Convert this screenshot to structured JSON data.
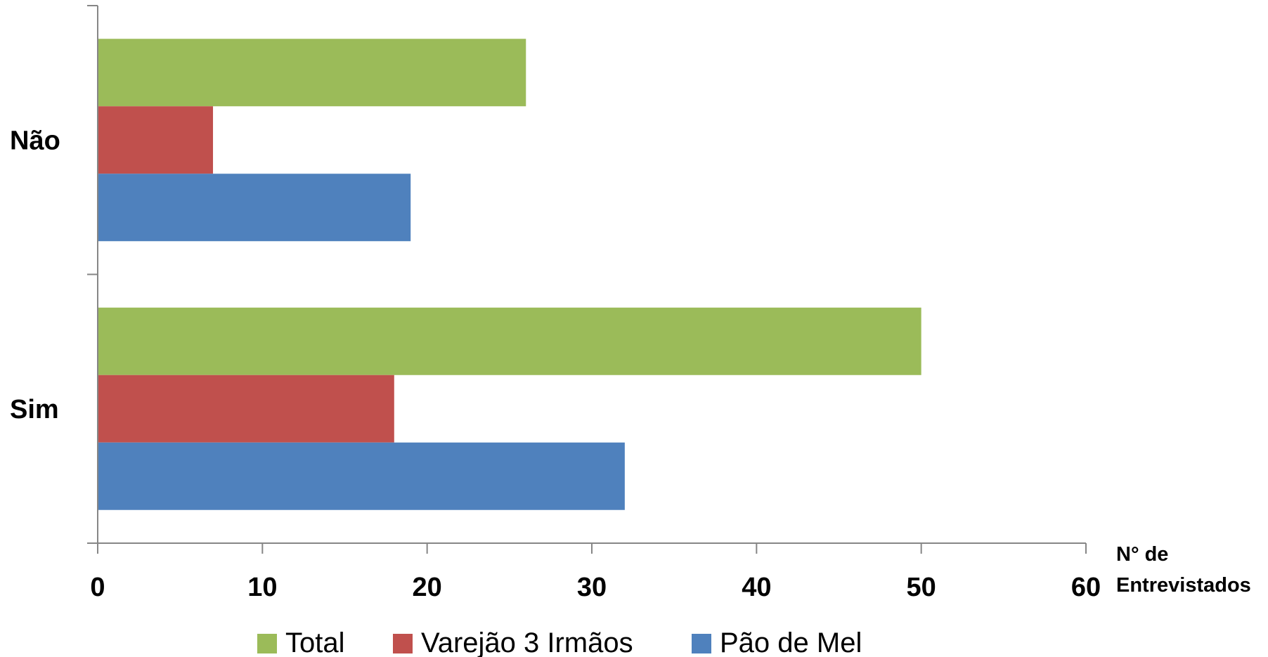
{
  "chart_data": {
    "type": "bar",
    "orientation": "horizontal",
    "categories": [
      "Não",
      "Sim"
    ],
    "series": [
      {
        "name": "Total",
        "color": "#9BBB59",
        "values": [
          26,
          50
        ]
      },
      {
        "name": "Varejão 3 Irmãos",
        "color": "#C0504D",
        "values": [
          7,
          18
        ]
      },
      {
        "name": "Pão de Mel",
        "color": "#4F81BD",
        "values": [
          19,
          32
        ]
      }
    ],
    "xlabel_lines": [
      "N° de",
      "Entrevistados"
    ],
    "xticks": [
      0,
      10,
      20,
      30,
      40,
      50,
      60
    ],
    "xlim": [
      0,
      60
    ],
    "grid": false,
    "legend_position": "bottom"
  }
}
